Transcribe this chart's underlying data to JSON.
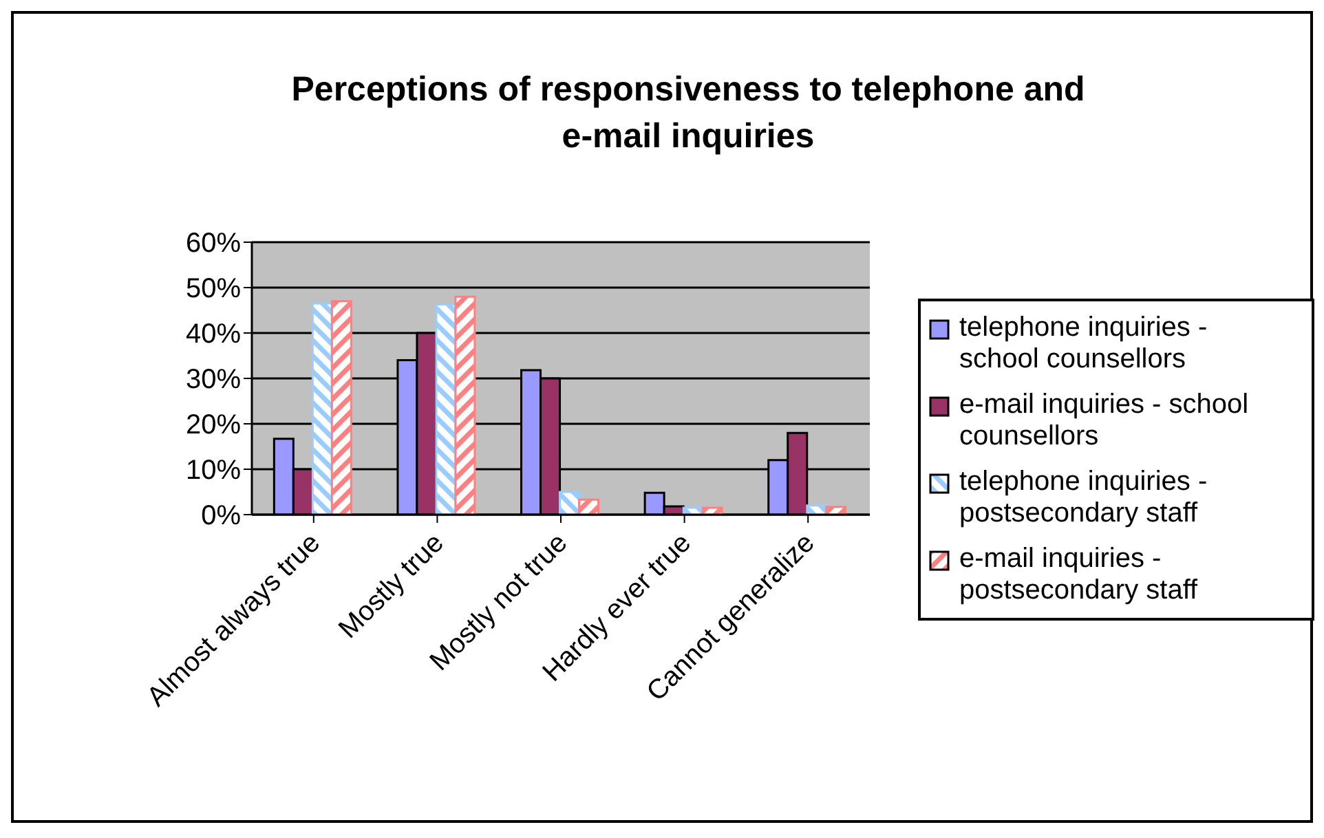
{
  "chart_data": {
    "type": "bar",
    "title": "Perceptions of responsiveness to telephone and e-mail inquiries",
    "categories": [
      "Almost always true",
      "Mostly true",
      "Mostly not true",
      "Hardly ever true",
      "Cannot generalize"
    ],
    "series": [
      {
        "name": "telephone inquiries - school counsellors",
        "color": "#9999ff",
        "values": [
          16.7,
          34,
          31.8,
          4.8,
          12
        ]
      },
      {
        "name": "e-mail inquiries - school counsellors",
        "color": "#993366",
        "values": [
          10,
          40,
          30,
          1.8,
          18
        ]
      },
      {
        "name": "telephone inquiries - postsecondary staff",
        "color": "#99ccff",
        "values": [
          46.5,
          46.3,
          5,
          1.5,
          2
        ]
      },
      {
        "name": "e-mail inquiries - postsecondary staff",
        "color": "#ff8080",
        "values": [
          47,
          48,
          3.3,
          1.5,
          1.7
        ]
      }
    ],
    "ylim": [
      0,
      60
    ],
    "yticks": [
      {
        "value": 0,
        "label": "0%"
      },
      {
        "value": 10,
        "label": "10%"
      },
      {
        "value": 20,
        "label": "20%"
      },
      {
        "value": 30,
        "label": "30%"
      },
      {
        "value": 40,
        "label": "40%"
      },
      {
        "value": 50,
        "label": "50%"
      },
      {
        "value": 60,
        "label": "60%"
      }
    ],
    "grid": "y",
    "legend": "right"
  }
}
